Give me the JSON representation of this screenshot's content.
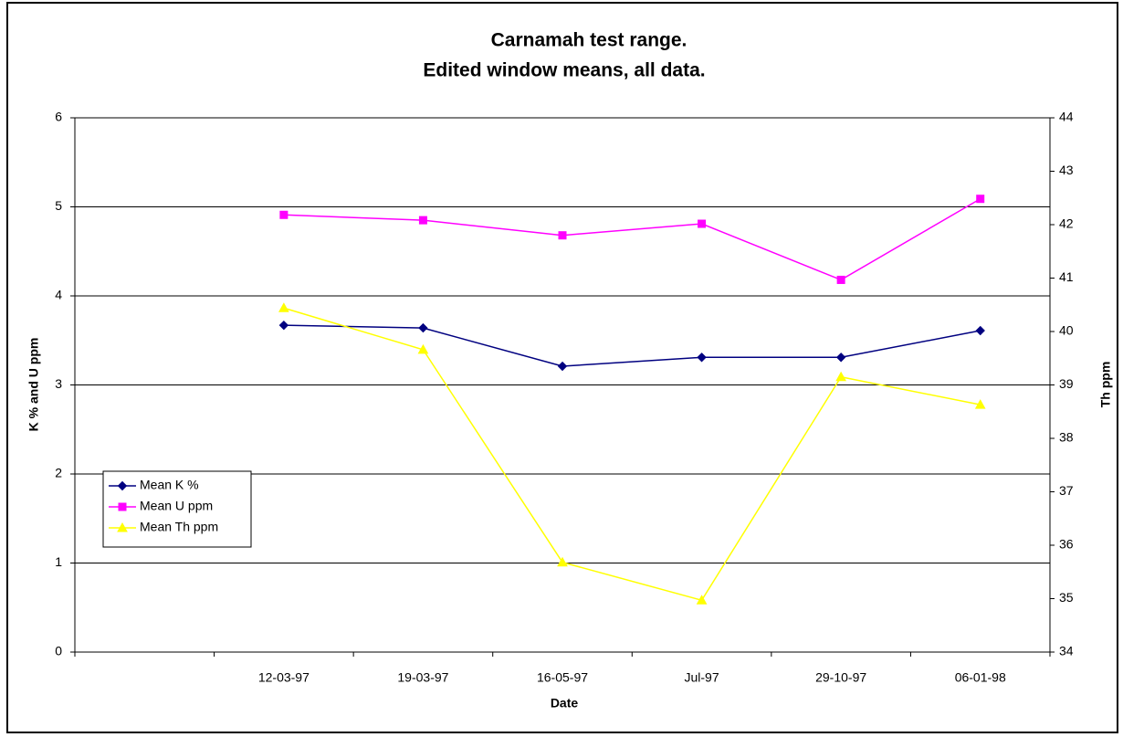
{
  "chart_data": {
    "type": "line",
    "title": [
      "Carnamah test range.",
      "Edited window means, all data."
    ],
    "x_label": "Date",
    "y_label": "K % and U ppm",
    "y2_label": "Th ppm",
    "categories": [
      null,
      "12-03-97",
      "19-03-97",
      "16-05-97",
      "Jul-97",
      "29-10-97",
      "06-01-98"
    ],
    "series": [
      {
        "name": "Mean K %",
        "color": "#000080",
        "marker": "diamond",
        "values": [
          null,
          3.67,
          3.64,
          3.21,
          3.31,
          3.31,
          3.61
        ]
      },
      {
        "name": "Mean U ppm",
        "color": "#ff00ff",
        "marker": "square",
        "values": [
          null,
          4.91,
          4.85,
          4.68,
          4.81,
          4.18,
          5.09
        ]
      },
      {
        "name": "Mean Th ppm",
        "color": "#ffff00",
        "marker": "triangle",
        "axis": "y2",
        "values": [
          null,
          40.44,
          39.66,
          35.68,
          34.97,
          39.15,
          38.63
        ]
      }
    ],
    "ylim": [
      0,
      6
    ],
    "yticks": [
      0,
      1,
      2,
      3,
      4,
      5,
      6
    ],
    "y2lim": [
      34,
      44
    ],
    "y2ticks": [
      34,
      35,
      36,
      37,
      38,
      39,
      40,
      41,
      42,
      43,
      44
    ],
    "grid": true,
    "legend": "left"
  }
}
